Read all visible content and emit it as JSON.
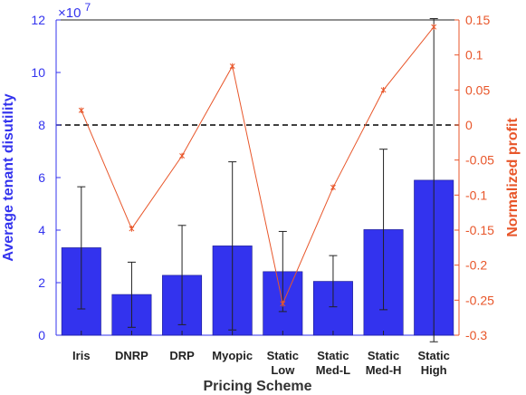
{
  "chart_data": {
    "type": "bar",
    "xlabel": "Pricing Scheme",
    "ylabel_left": "Average tenant disutility",
    "ylabel_right": "Normalized profit",
    "y_left_exponent_label": "×10",
    "y_left_exponent_power": "7",
    "categories": [
      [
        "Iris"
      ],
      [
        "DNRP"
      ],
      [
        "DRP"
      ],
      [
        "Myopic"
      ],
      [
        "Static",
        "Low"
      ],
      [
        "Static",
        "Med-L"
      ],
      [
        "Static",
        "Med-H"
      ],
      [
        "Static",
        "High"
      ]
    ],
    "ylim_left": [
      0,
      12
    ],
    "yticks_left": [
      0,
      2,
      4,
      6,
      8,
      10,
      12
    ],
    "ylim_right": [
      -0.3,
      0.15
    ],
    "yticks_right": [
      -0.3,
      -0.25,
      -0.2,
      -0.15,
      -0.1,
      -0.05,
      0,
      0.05,
      0.1,
      0.15
    ],
    "yticklabels_right": [
      "-0.3",
      "-0.25",
      "-0.2",
      "-0.15",
      "-0.1",
      "-0.05",
      "0",
      "0.05",
      "0.1",
      "0.15"
    ],
    "series": [
      {
        "name": "Average tenant disutility",
        "axis": "left",
        "kind": "bar",
        "values": [
          3.33,
          1.55,
          2.28,
          3.4,
          2.42,
          2.05,
          4.02,
          5.9
        ],
        "err_low": [
          1.0,
          0.3,
          0.4,
          0.2,
          0.9,
          1.08,
          0.97,
          -0.25
        ],
        "err_high": [
          5.65,
          2.78,
          4.18,
          6.6,
          3.95,
          3.03,
          7.08,
          12.05
        ]
      },
      {
        "name": "Normalized profit",
        "axis": "right",
        "kind": "line",
        "values": [
          0.021,
          -0.148,
          -0.044,
          0.084,
          -0.255,
          -0.089,
          0.05,
          0.14
        ]
      }
    ],
    "reference_line": {
      "axis": "right",
      "value": 0,
      "style": "dashed"
    },
    "grid": false,
    "colors": {
      "bar": "#3333ee",
      "left_axis": "#3333ee",
      "right_axis": "#e8562a",
      "line": "#e8562a",
      "error_bar": "#222222",
      "reference_line": "#000000",
      "xlabel": "#333333"
    }
  }
}
